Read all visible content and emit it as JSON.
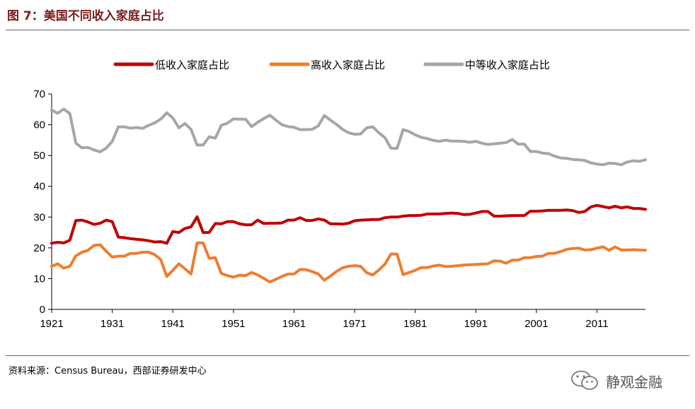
{
  "figure": {
    "title": "图 7：美国不同收入家庭占比",
    "source": "资料来源：Census Bureau，西部证券研发中心",
    "watermark": "静观金融",
    "watermark_icon": "wechat-icon"
  },
  "chart_data": {
    "type": "line",
    "title": "",
    "xlabel": "",
    "ylabel": "",
    "ylim": [
      0,
      70
    ],
    "yticks": [
      0,
      10,
      20,
      30,
      40,
      50,
      60,
      70
    ],
    "xlim": [
      1921,
      2019
    ],
    "xticks": [
      1921,
      1931,
      1941,
      1951,
      1961,
      1971,
      1981,
      1991,
      2001,
      2011
    ],
    "xtick_labels": [
      "1921",
      "1931",
      "1941",
      "1951",
      "1961",
      "1971",
      "1981",
      "1991",
      "2001",
      "2011"
    ],
    "grid": false,
    "legend_position": "top",
    "series": [
      {
        "name": "低收入家庭占比",
        "color": "#c00000",
        "x": [
          1921,
          1922,
          1923,
          1924,
          1925,
          1926,
          1927,
          1928,
          1929,
          1930,
          1931,
          1932,
          1933,
          1934,
          1935,
          1936,
          1937,
          1938,
          1939,
          1940,
          1941,
          1942,
          1943,
          1944,
          1945,
          1946,
          1947,
          1948,
          1949,
          1950,
          1951,
          1952,
          1953,
          1954,
          1955,
          1956,
          1957,
          1958,
          1959,
          1960,
          1961,
          1962,
          1963,
          1964,
          1965,
          1966,
          1967,
          1968,
          1969,
          1970,
          1971,
          1972,
          1973,
          1974,
          1975,
          1976,
          1977,
          1978,
          1979,
          1980,
          1981,
          1982,
          1983,
          1984,
          1985,
          1986,
          1987,
          1988,
          1989,
          1990,
          1991,
          1992,
          1993,
          1994,
          1995,
          1996,
          1997,
          1998,
          1999,
          2000,
          2001,
          2002,
          2003,
          2004,
          2005,
          2006,
          2007,
          2008,
          2009,
          2010,
          2011,
          2012,
          2013,
          2014,
          2015,
          2016,
          2017,
          2018,
          2019
        ],
        "values": [
          21.5,
          21.8,
          21.6,
          22.5,
          28.9,
          29.0,
          28.4,
          27.6,
          28.0,
          29.0,
          28.5,
          23.5,
          23.3,
          23.0,
          22.8,
          22.6,
          22.3,
          21.9,
          22.0,
          21.5,
          25.3,
          25.0,
          26.3,
          26.8,
          30.1,
          25.0,
          25.0,
          27.9,
          27.8,
          28.5,
          28.5,
          27.8,
          27.5,
          27.5,
          29.0,
          27.9,
          28.0,
          28.0,
          28.1,
          29.0,
          29.0,
          29.8,
          28.9,
          28.9,
          29.4,
          29.0,
          27.8,
          27.8,
          27.7,
          28.0,
          28.8,
          29.0,
          29.1,
          29.2,
          29.2,
          29.8,
          30.0,
          30.0,
          30.3,
          30.5,
          30.5,
          30.6,
          31.0,
          31.0,
          31.0,
          31.2,
          31.3,
          31.2,
          30.8,
          30.9,
          31.3,
          31.8,
          31.8,
          30.3,
          30.3,
          30.4,
          30.5,
          30.5,
          30.5,
          31.9,
          31.9,
          32.0,
          32.2,
          32.2,
          32.2,
          32.3,
          32.1,
          31.5,
          31.8,
          33.3,
          33.8,
          33.4,
          33.0,
          33.5,
          33.0,
          33.3,
          32.8,
          32.8,
          32.5
        ]
      },
      {
        "name": "高收入家庭占比",
        "color": "#ed7d31",
        "x": [
          1921,
          1922,
          1923,
          1924,
          1925,
          1926,
          1927,
          1928,
          1929,
          1930,
          1931,
          1932,
          1933,
          1934,
          1935,
          1936,
          1937,
          1938,
          1939,
          1940,
          1941,
          1942,
          1943,
          1944,
          1945,
          1946,
          1947,
          1948,
          1949,
          1950,
          1951,
          1952,
          1953,
          1954,
          1955,
          1956,
          1957,
          1958,
          1959,
          1960,
          1961,
          1962,
          1963,
          1964,
          1965,
          1966,
          1967,
          1968,
          1969,
          1970,
          1971,
          1972,
          1973,
          1974,
          1975,
          1976,
          1977,
          1978,
          1979,
          1980,
          1981,
          1982,
          1983,
          1984,
          1985,
          1986,
          1987,
          1988,
          1989,
          1990,
          1991,
          1992,
          1993,
          1994,
          1995,
          1996,
          1997,
          1998,
          1999,
          2000,
          2001,
          2002,
          2003,
          2004,
          2005,
          2006,
          2007,
          2008,
          2009,
          2010,
          2011,
          2012,
          2013,
          2014,
          2015,
          2016,
          2017,
          2018,
          2019
        ],
        "values": [
          14.0,
          14.8,
          13.4,
          14.0,
          17.4,
          18.6,
          19.2,
          20.8,
          21.0,
          18.9,
          17.0,
          17.3,
          17.3,
          18.2,
          18.2,
          18.6,
          18.6,
          17.8,
          16.2,
          10.7,
          12.7,
          14.8,
          13.2,
          11.5,
          21.6,
          21.6,
          16.6,
          16.8,
          11.7,
          11.0,
          10.5,
          11.1,
          11.0,
          12.0,
          11.2,
          10.1,
          8.9,
          9.8,
          10.7,
          11.5,
          11.5,
          13.0,
          12.9,
          12.3,
          11.5,
          9.5,
          10.8,
          12.3,
          13.5,
          14.0,
          14.2,
          14.0,
          11.9,
          11.2,
          12.8,
          14.7,
          18.0,
          18.0,
          11.3,
          12.0,
          12.7,
          13.6,
          13.6,
          14.1,
          14.4,
          13.9,
          14.0,
          14.2,
          14.4,
          14.5,
          14.6,
          14.7,
          14.8,
          15.8,
          15.7,
          15.0,
          16.0,
          16.0,
          16.8,
          16.8,
          17.2,
          17.3,
          18.2,
          18.2,
          18.8,
          19.5,
          19.8,
          19.9,
          19.3,
          19.4,
          19.9,
          20.3,
          19.2,
          20.3,
          19.3,
          19.3,
          19.4,
          19.3,
          19.2
        ]
      },
      {
        "name": "中等收入家庭占比",
        "color": "#a6a6a6",
        "x": [
          1921,
          1922,
          1923,
          1924,
          1925,
          1926,
          1927,
          1928,
          1929,
          1930,
          1931,
          1932,
          1933,
          1934,
          1935,
          1936,
          1937,
          1938,
          1939,
          1940,
          1941,
          1942,
          1943,
          1944,
          1945,
          1946,
          1947,
          1948,
          1949,
          1950,
          1951,
          1952,
          1953,
          1954,
          1955,
          1956,
          1957,
          1958,
          1959,
          1960,
          1961,
          1962,
          1963,
          1964,
          1965,
          1966,
          1967,
          1968,
          1969,
          1970,
          1971,
          1972,
          1973,
          1974,
          1975,
          1976,
          1977,
          1978,
          1979,
          1980,
          1981,
          1982,
          1983,
          1984,
          1985,
          1986,
          1987,
          1988,
          1989,
          1990,
          1991,
          1992,
          1993,
          1994,
          1995,
          1996,
          1997,
          1998,
          1999,
          2000,
          2001,
          2002,
          2003,
          2004,
          2005,
          2006,
          2007,
          2008,
          2009,
          2010,
          2011,
          2012,
          2013,
          2014,
          2015,
          2016,
          2017,
          2018,
          2019
        ],
        "values": [
          64.8,
          63.7,
          65.1,
          63.6,
          54.0,
          52.5,
          52.6,
          51.8,
          51.2,
          52.4,
          54.6,
          59.3,
          59.3,
          58.9,
          59.1,
          58.8,
          59.8,
          60.6,
          61.8,
          63.9,
          62.2,
          59.0,
          60.4,
          58.5,
          53.4,
          53.4,
          56.1,
          55.6,
          59.8,
          60.5,
          61.9,
          61.8,
          61.8,
          59.4,
          60.8,
          62.0,
          63.1,
          61.5,
          60.0,
          59.4,
          59.2,
          58.4,
          58.4,
          58.5,
          59.6,
          63.0,
          61.5,
          60.1,
          58.5,
          57.4,
          56.9,
          57.0,
          59.0,
          59.3,
          57.4,
          55.8,
          52.4,
          52.3,
          58.4,
          57.8,
          56.7,
          55.9,
          55.5,
          54.9,
          54.6,
          55.0,
          54.7,
          54.7,
          54.6,
          54.3,
          54.6,
          54.0,
          53.6,
          53.8,
          54.0,
          54.2,
          55.2,
          53.7,
          53.7,
          51.3,
          51.3,
          50.8,
          50.6,
          49.8,
          49.2,
          49.1,
          48.7,
          48.6,
          48.4,
          47.6,
          47.2,
          47.0,
          47.5,
          47.4,
          47.0,
          47.9,
          48.3,
          48.1,
          48.6
        ]
      }
    ]
  }
}
